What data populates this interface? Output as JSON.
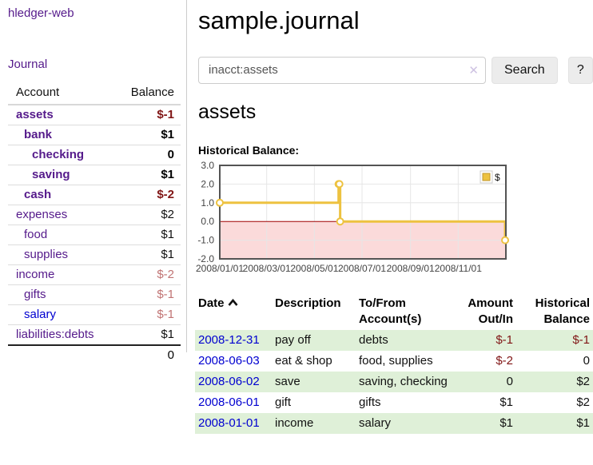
{
  "sidebar": {
    "app_title": "hledger-web",
    "nav": {
      "journal": "Journal"
    },
    "accounts_table": {
      "headers": {
        "account": "Account",
        "balance": "Balance"
      },
      "rows": [
        {
          "name": "assets",
          "balance": "$-1"
        },
        {
          "name": "bank",
          "balance": "$1"
        },
        {
          "name": "checking",
          "balance": "0"
        },
        {
          "name": "saving",
          "balance": "$1"
        },
        {
          "name": "cash",
          "balance": "$-2"
        },
        {
          "name": "expenses",
          "balance": "$2"
        },
        {
          "name": "food",
          "balance": "$1"
        },
        {
          "name": "supplies",
          "balance": "$1"
        },
        {
          "name": "income",
          "balance": "$-2"
        },
        {
          "name": "gifts",
          "balance": "$-1"
        },
        {
          "name": "salary",
          "balance": "$-1"
        },
        {
          "name": "liabilities:debts",
          "balance": "$1"
        }
      ],
      "total": "0"
    }
  },
  "header": {
    "title": "sample.journal"
  },
  "search": {
    "value": "inacct:assets",
    "clear_icon": "✕",
    "button_label": "Search",
    "help_label": "?"
  },
  "account_page": {
    "title": "assets",
    "chart_label": "Historical Balance:"
  },
  "chart_data": {
    "type": "line",
    "title": "Historical Balance",
    "step": true,
    "x_range": [
      "2008-01-01",
      "2009-01-01"
    ],
    "ylim": [
      -2,
      3
    ],
    "y_ticks": [
      "3.0",
      "2.0",
      "1.0",
      "0.0",
      "-1.0",
      "-2.0"
    ],
    "x_ticks": [
      "2008/01/01",
      "2008/03/01",
      "2008/05/01",
      "2008/07/01",
      "2008/09/01",
      "2008/11/01"
    ],
    "series": [
      {
        "name": "$",
        "color": "#edc240",
        "points": [
          [
            "2008-01-01",
            1
          ],
          [
            "2008-06-01",
            2
          ],
          [
            "2008-06-02",
            2
          ],
          [
            "2008-06-03",
            0
          ],
          [
            "2008-12-31",
            -1
          ]
        ]
      }
    ],
    "legend_position": "top-right",
    "grid_color": "#e6e6e6",
    "border_color": "#545454",
    "negative_region_color": "#fbdada",
    "zero_line_color": "#a40000"
  },
  "register": {
    "headers": {
      "date": "Date",
      "description": "Description",
      "account": "To/From Account(s)",
      "amount": "Amount Out/In",
      "balance": "Historical Balance"
    },
    "rows": [
      {
        "date": "2008-12-31",
        "description": "pay off",
        "accounts": "debts",
        "amount": "$-1",
        "balance": "$-1"
      },
      {
        "date": "2008-06-03",
        "description": "eat & shop",
        "accounts": "food, supplies",
        "amount": "$-2",
        "balance": "0"
      },
      {
        "date": "2008-06-02",
        "description": "save",
        "accounts": "saving, checking",
        "amount": "0",
        "balance": "$2"
      },
      {
        "date": "2008-06-01",
        "description": "gift",
        "accounts": "gifts",
        "amount": "$1",
        "balance": "$2"
      },
      {
        "date": "2008-01-01",
        "description": "income",
        "accounts": "salary",
        "amount": "$1",
        "balance": "$1"
      }
    ]
  }
}
